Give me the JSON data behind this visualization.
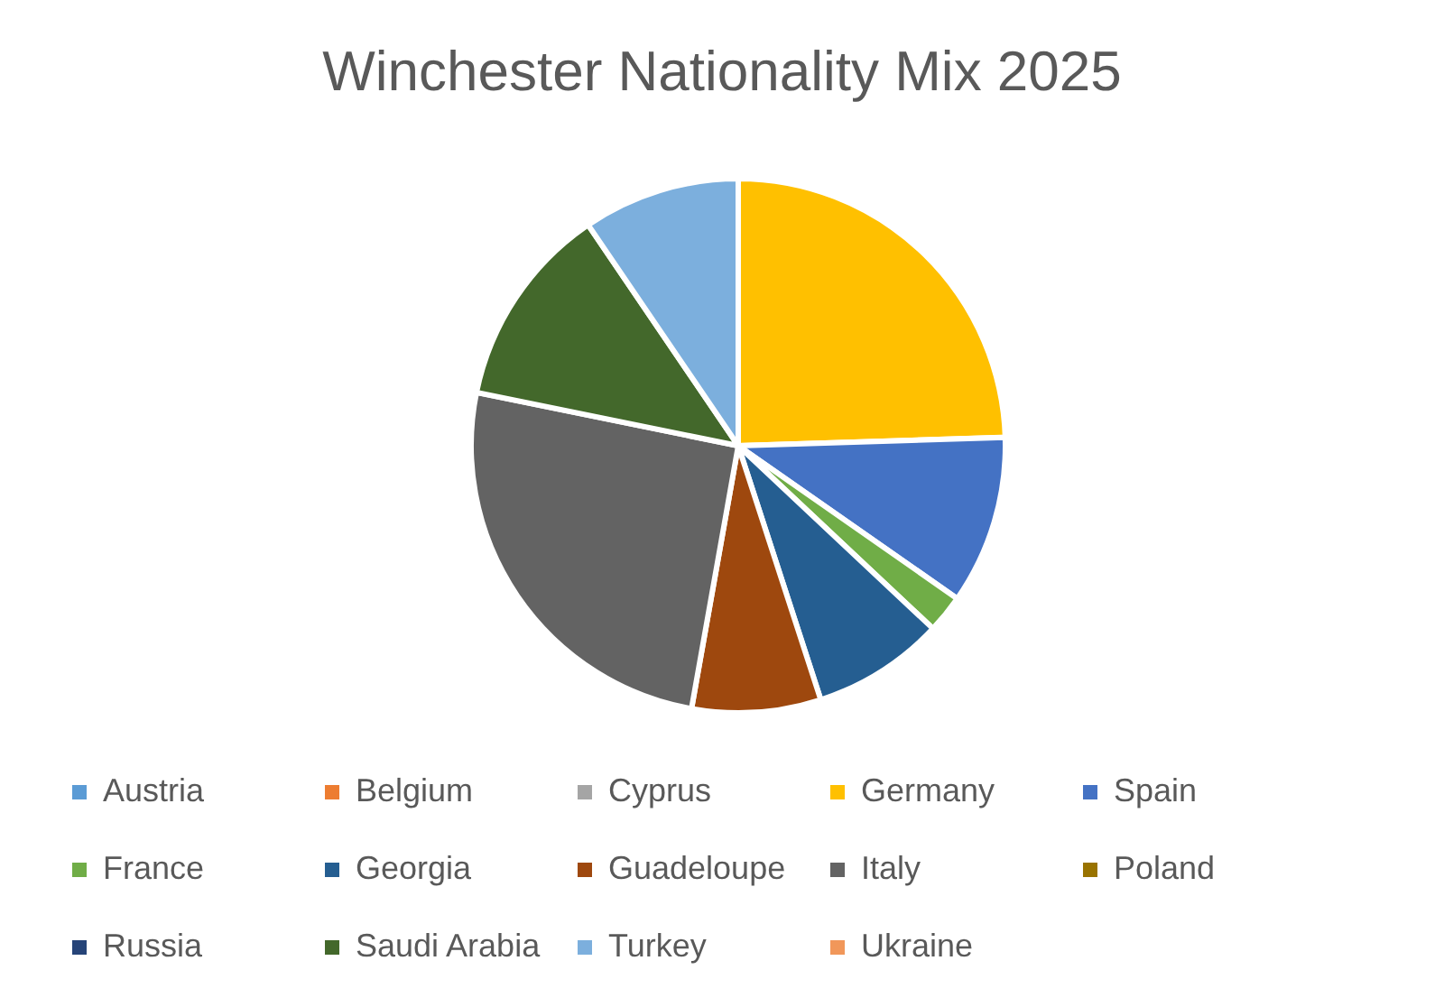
{
  "chart_data": {
    "type": "pie",
    "title": "Winchester Nationality Mix 2025",
    "categories": [
      "Austria",
      "Belgium",
      "Cyprus",
      "Germany",
      "Spain",
      "France",
      "Georgia",
      "Guadeloupe",
      "Italy",
      "Poland",
      "Russia",
      "Saudi Arabia",
      "Turkey",
      "Ukraine"
    ],
    "values": [
      0,
      0,
      0,
      24.5,
      10.2,
      2.3,
      8,
      7.8,
      25.4,
      0,
      0,
      12.3,
      9.5,
      0
    ],
    "colors": [
      "#5b9bd5",
      "#ed7d31",
      "#a5a5a5",
      "#ffc000",
      "#4472c4",
      "#70ad47",
      "#255e91",
      "#9e480e",
      "#636363",
      "#997300",
      "#264478",
      "#43682b",
      "#7cafdd",
      "#f1975a"
    ],
    "legend": "bottom"
  }
}
